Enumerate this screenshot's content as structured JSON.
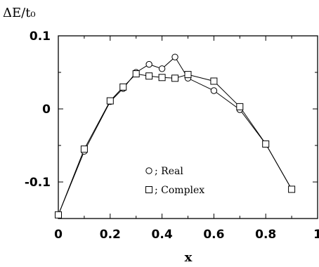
{
  "chart_data": {
    "type": "line",
    "title": "",
    "ylabel": "ΔE/t₀",
    "xlabel": "x",
    "xlim": [
      0,
      1
    ],
    "ylim": [
      -0.15,
      0.1
    ],
    "x_ticks": [
      0,
      0.2,
      0.4,
      0.6,
      0.8,
      1
    ],
    "x_tick_labels": [
      "0",
      "0.2",
      "0.4",
      "0.6",
      "0.8",
      "1"
    ],
    "y_ticks": [
      -0.1,
      0,
      0.1
    ],
    "y_tick_labels": [
      "-0.1",
      "0",
      "0.1"
    ],
    "grid": false,
    "legend_position": "lower-center",
    "series": [
      {
        "name": "; Real",
        "marker": "circle",
        "x": [
          0,
          0.1,
          0.2,
          0.25,
          0.3,
          0.35,
          0.4,
          0.45,
          0.5,
          0.6,
          0.7,
          0.8,
          0.9
        ],
        "y": [
          -0.145,
          -0.058,
          0.01,
          0.028,
          0.05,
          0.061,
          0.055,
          0.071,
          0.042,
          0.025,
          -0.001,
          -0.048,
          -0.11
        ]
      },
      {
        "name": "; Complex",
        "marker": "square",
        "x": [
          0,
          0.1,
          0.2,
          0.25,
          0.3,
          0.35,
          0.4,
          0.45,
          0.5,
          0.6,
          0.7,
          0.8,
          0.9
        ],
        "y": [
          -0.145,
          -0.055,
          0.011,
          0.03,
          0.048,
          0.045,
          0.043,
          0.042,
          0.047,
          0.038,
          0.003,
          -0.048,
          -0.11
        ]
      }
    ]
  }
}
